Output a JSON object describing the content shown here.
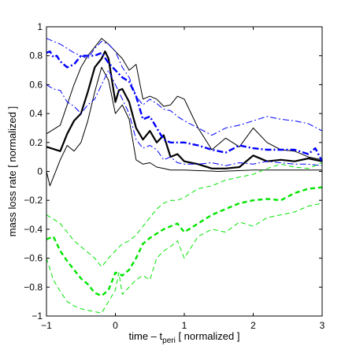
{
  "chart_data": {
    "type": "line",
    "xlabel": "time – t",
    "xlabel_sub": "peri",
    "xlabel_suffix": " [ normalized ]",
    "ylabel": "mass loss rate [ normalized ]",
    "xlim": [
      -1,
      3
    ],
    "ylim": [
      -1,
      1
    ],
    "xticks": [
      -1,
      0,
      1,
      2,
      3
    ],
    "yticks": [
      -1,
      -0.8,
      -0.6,
      -0.4,
      -0.2,
      0,
      0.2,
      0.4,
      0.6,
      0.8,
      1
    ],
    "xtick_labels": [
      "−1",
      "0",
      "1",
      "2",
      "3"
    ],
    "ytick_labels": [
      "−1",
      "−0.8",
      "−0.6",
      "−0.4",
      "−0.2",
      "0",
      "0.2",
      "0.4",
      "0.6",
      "0.8",
      "1"
    ],
    "grid": false,
    "colors": {
      "black": "#000000",
      "blue": "#0000ff",
      "green": "#00e400"
    },
    "series": [
      {
        "color": "black",
        "style": "solid",
        "width": 2.2,
        "x": [
          -1.0,
          -0.8,
          -0.7,
          -0.6,
          -0.5,
          -0.4,
          -0.3,
          -0.2,
          -0.15,
          -0.1,
          0.0,
          0.05,
          0.1,
          0.2,
          0.3,
          0.4,
          0.5,
          0.6,
          0.7,
          0.8,
          0.9,
          1.0,
          1.2,
          1.4,
          1.6,
          1.8,
          2.0,
          2.2,
          2.4,
          2.6,
          2.8,
          3.0
        ],
        "y": [
          0.17,
          0.14,
          0.26,
          0.35,
          0.4,
          0.55,
          0.72,
          0.78,
          0.83,
          0.78,
          0.48,
          0.56,
          0.57,
          0.48,
          0.3,
          0.22,
          0.28,
          0.2,
          0.25,
          0.1,
          0.12,
          0.07,
          0.05,
          0.02,
          0.02,
          0.03,
          0.11,
          0.07,
          0.08,
          0.07,
          0.09,
          0.07
        ]
      },
      {
        "color": "black",
        "style": "solid",
        "width": 1,
        "x": [
          -1.0,
          -0.8,
          -0.6,
          -0.5,
          -0.4,
          -0.3,
          -0.2,
          -0.1,
          0.0,
          0.1,
          0.2,
          0.3,
          0.4,
          0.5,
          0.6,
          0.7,
          0.8,
          0.9,
          1.0,
          1.2,
          1.4,
          1.6,
          1.8,
          2.0,
          2.2,
          2.4,
          2.6,
          2.8,
          3.0
        ],
        "y": [
          0.26,
          0.32,
          0.6,
          0.72,
          0.8,
          0.86,
          0.92,
          0.88,
          0.83,
          0.78,
          0.7,
          0.74,
          0.5,
          0.52,
          0.5,
          0.45,
          0.46,
          0.52,
          0.5,
          0.3,
          0.15,
          0.23,
          0.17,
          0.3,
          0.2,
          0.15,
          0.14,
          0.1,
          0.08
        ]
      },
      {
        "color": "black",
        "style": "solid",
        "width": 1,
        "x": [
          -1.0,
          -0.95,
          -0.9,
          -0.8,
          -0.7,
          -0.6,
          -0.5,
          -0.4,
          -0.3,
          -0.2,
          -0.1,
          0.0,
          0.1,
          0.2,
          0.3,
          0.4,
          0.5,
          0.6,
          0.7,
          0.8,
          1.0,
          1.5,
          2.0,
          2.5,
          3.0
        ],
        "y": [
          0.0,
          -0.1,
          -0.04,
          0.08,
          0.18,
          0.14,
          0.2,
          0.35,
          0.55,
          0.72,
          0.63,
          0.4,
          0.46,
          0.36,
          0.08,
          0.05,
          0.06,
          0.03,
          0.02,
          0.01,
          0.01,
          0.0,
          0.01,
          0.01,
          0.01
        ]
      },
      {
        "color": "blue",
        "style": "dashdot",
        "width": 2.4,
        "x": [
          -1.0,
          -0.95,
          -0.9,
          -0.85,
          -0.8,
          -0.7,
          -0.6,
          -0.5,
          -0.4,
          -0.3,
          -0.2,
          -0.1,
          0.0,
          0.1,
          0.2,
          0.3,
          0.4,
          0.5,
          0.6,
          0.7,
          0.8,
          1.0,
          1.2,
          1.4,
          1.6,
          1.8,
          2.0,
          2.2,
          2.4,
          2.6,
          2.8,
          2.9,
          3.0
        ],
        "y": [
          0.82,
          0.83,
          0.79,
          0.8,
          0.76,
          0.72,
          0.74,
          0.8,
          0.8,
          0.8,
          0.82,
          0.75,
          0.7,
          0.65,
          0.62,
          0.52,
          0.36,
          0.38,
          0.3,
          0.22,
          0.2,
          0.2,
          0.18,
          0.15,
          0.13,
          0.18,
          0.16,
          0.15,
          0.15,
          0.15,
          0.12,
          0.16,
          0.07
        ]
      },
      {
        "color": "blue",
        "style": "dashdot",
        "width": 1,
        "x": [
          -1.0,
          -0.8,
          -0.6,
          -0.5,
          -0.4,
          -0.3,
          -0.2,
          -0.1,
          0.0,
          0.1,
          0.2,
          0.3,
          0.4,
          0.5,
          0.6,
          0.7,
          0.8,
          0.9,
          1.0,
          1.2,
          1.4,
          1.6,
          1.8,
          2.0,
          2.2,
          2.4,
          2.6,
          2.8,
          3.0
        ],
        "y": [
          0.92,
          0.88,
          0.82,
          0.8,
          0.78,
          0.85,
          0.9,
          0.88,
          0.83,
          0.72,
          0.65,
          0.52,
          0.46,
          0.5,
          0.47,
          0.43,
          0.42,
          0.38,
          0.35,
          0.3,
          0.25,
          0.3,
          0.32,
          0.35,
          0.38,
          0.36,
          0.35,
          0.33,
          0.28
        ]
      },
      {
        "color": "blue",
        "style": "dashdot",
        "width": 1,
        "x": [
          -1.0,
          -0.9,
          -0.8,
          -0.7,
          -0.6,
          -0.5,
          -0.4,
          -0.3,
          -0.2,
          -0.1,
          0.0,
          0.1,
          0.2,
          0.3,
          0.4,
          0.5,
          0.6,
          0.7,
          0.8,
          0.9,
          1.0,
          1.2,
          1.4,
          1.6,
          1.8,
          2.0,
          2.2,
          2.4,
          2.6,
          2.8,
          3.0
        ],
        "y": [
          0.6,
          0.57,
          0.56,
          0.48,
          0.45,
          0.4,
          0.46,
          0.5,
          0.6,
          0.7,
          0.6,
          0.5,
          0.4,
          0.22,
          0.16,
          0.18,
          0.15,
          0.08,
          0.1,
          0.06,
          0.05,
          0.05,
          0.06,
          0.04,
          0.06,
          0.05,
          0.07,
          0.06,
          0.05,
          0.05,
          0.04
        ]
      },
      {
        "color": "green",
        "style": "dashed",
        "width": 2.4,
        "x": [
          -1.0,
          -0.9,
          -0.8,
          -0.7,
          -0.6,
          -0.5,
          -0.4,
          -0.3,
          -0.2,
          -0.1,
          0.0,
          0.1,
          0.2,
          0.3,
          0.4,
          0.5,
          0.6,
          0.7,
          0.8,
          0.9,
          1.0,
          1.2,
          1.4,
          1.6,
          1.8,
          2.0,
          2.2,
          2.4,
          2.6,
          2.8,
          3.0
        ],
        "y": [
          -0.47,
          -0.45,
          -0.55,
          -0.62,
          -0.68,
          -0.74,
          -0.78,
          -0.84,
          -0.86,
          -0.82,
          -0.7,
          -0.72,
          -0.68,
          -0.6,
          -0.5,
          -0.46,
          -0.43,
          -0.4,
          -0.38,
          -0.36,
          -0.42,
          -0.36,
          -0.3,
          -0.26,
          -0.22,
          -0.2,
          -0.19,
          -0.2,
          -0.15,
          -0.12,
          -0.11
        ]
      },
      {
        "color": "green",
        "style": "dashed",
        "width": 1,
        "x": [
          -1.0,
          -0.9,
          -0.8,
          -0.7,
          -0.6,
          -0.5,
          -0.4,
          -0.3,
          -0.2,
          -0.1,
          0.0,
          0.1,
          0.2,
          0.3,
          0.4,
          0.5,
          0.6,
          0.7,
          0.8,
          0.9,
          1.0,
          1.2,
          1.4,
          1.6,
          1.8,
          2.0,
          2.2,
          2.4,
          2.6,
          2.8,
          3.0
        ],
        "y": [
          -0.3,
          -0.33,
          -0.36,
          -0.42,
          -0.48,
          -0.52,
          -0.56,
          -0.6,
          -0.66,
          -0.6,
          -0.55,
          -0.5,
          -0.48,
          -0.44,
          -0.38,
          -0.32,
          -0.26,
          -0.22,
          -0.2,
          -0.2,
          -0.18,
          -0.12,
          -0.1,
          -0.06,
          -0.04,
          -0.02,
          0.02,
          0.05,
          0.03,
          0.02,
          0.06
        ]
      },
      {
        "color": "green",
        "style": "dashed",
        "width": 1,
        "x": [
          -1.0,
          -0.9,
          -0.8,
          -0.7,
          -0.6,
          -0.5,
          -0.4,
          -0.3,
          -0.2,
          -0.1,
          0.0,
          0.05,
          0.1,
          0.2,
          0.3,
          0.4,
          0.5,
          0.6,
          0.7,
          0.8,
          0.9,
          1.0,
          1.2,
          1.4,
          1.6,
          1.8,
          2.0,
          2.2,
          2.4,
          2.6,
          2.8,
          3.0
        ],
        "y": [
          -0.6,
          -0.75,
          -0.83,
          -0.9,
          -0.93,
          -0.95,
          -0.96,
          -0.97,
          -0.98,
          -0.9,
          -0.82,
          -0.7,
          -0.85,
          -0.8,
          -0.75,
          -0.72,
          -0.75,
          -0.6,
          -0.55,
          -0.52,
          -0.48,
          -0.6,
          -0.45,
          -0.4,
          -0.42,
          -0.35,
          -0.38,
          -0.32,
          -0.3,
          -0.28,
          -0.24,
          -0.22
        ]
      }
    ]
  }
}
